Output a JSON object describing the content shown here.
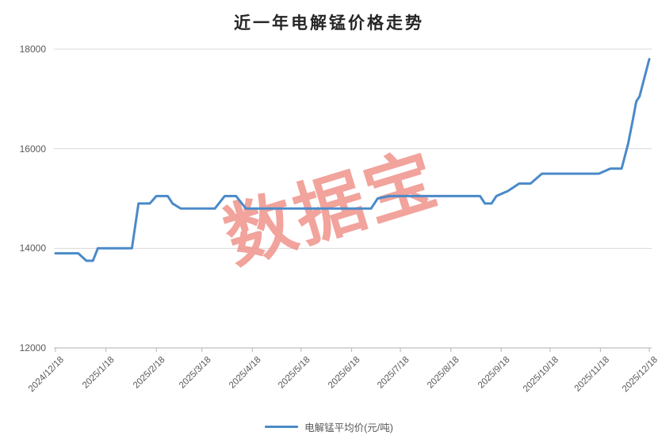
{
  "title": "近一年电解锰价格走势",
  "watermark": "数据宝",
  "legend": {
    "label": "电解锰平均价(元/吨)"
  },
  "colors": {
    "line": "#4a8ac9",
    "grid": "#d9d9d9",
    "axis": "#bfbfbf",
    "tick_text": "#595959",
    "title_text": "#262626",
    "watermark": "#ef938b",
    "background": "#ffffff"
  },
  "chart_data": {
    "type": "line",
    "title": "近一年电解锰价格走势",
    "xlabel": "",
    "ylabel": "",
    "ylim": [
      12000,
      18000
    ],
    "y_ticks": [
      12000,
      14000,
      16000,
      18000
    ],
    "x_range": [
      "2024/12/18",
      "2025/12/18"
    ],
    "x_tick_labels": [
      "2024/12/18",
      "2025/1/18",
      "2025/2/18",
      "2025/3/18",
      "2025/4/18",
      "2025/5/18",
      "2025/6/18",
      "2025/7/18",
      "2025/8/18",
      "2025/9/18",
      "2025/10/18",
      "2025/11/18",
      "2025/12/18"
    ],
    "grid": "horizontal",
    "legend_position": "bottom",
    "series": [
      {
        "name": "电解锰平均价(元/吨)",
        "points": [
          [
            "2024/12/18",
            13900
          ],
          [
            "2024/12/25",
            13900
          ],
          [
            "2025/1/1",
            13900
          ],
          [
            "2025/1/6",
            13750
          ],
          [
            "2025/1/10",
            13750
          ],
          [
            "2025/1/13",
            14000
          ],
          [
            "2025/1/20",
            14000
          ],
          [
            "2025/1/27",
            14000
          ],
          [
            "2025/2/3",
            14000
          ],
          [
            "2025/2/7",
            14900
          ],
          [
            "2025/2/14",
            14900
          ],
          [
            "2025/2/18",
            15050
          ],
          [
            "2025/2/25",
            15050
          ],
          [
            "2025/2/28",
            14900
          ],
          [
            "2025/3/5",
            14800
          ],
          [
            "2025/3/12",
            14800
          ],
          [
            "2025/3/19",
            14800
          ],
          [
            "2025/3/26",
            14800
          ],
          [
            "2025/4/1",
            15050
          ],
          [
            "2025/4/8",
            15050
          ],
          [
            "2025/4/14",
            14800
          ],
          [
            "2025/4/21",
            14800
          ],
          [
            "2025/4/28",
            14800
          ],
          [
            "2025/5/5",
            14800
          ],
          [
            "2025/5/12",
            14800
          ],
          [
            "2025/5/19",
            14800
          ],
          [
            "2025/5/26",
            14800
          ],
          [
            "2025/6/2",
            14800
          ],
          [
            "2025/6/9",
            14800
          ],
          [
            "2025/6/16",
            14800
          ],
          [
            "2025/6/23",
            14800
          ],
          [
            "2025/6/30",
            14800
          ],
          [
            "2025/7/4",
            15000
          ],
          [
            "2025/7/11",
            15050
          ],
          [
            "2025/7/18",
            15050
          ],
          [
            "2025/7/25",
            15050
          ],
          [
            "2025/8/1",
            15050
          ],
          [
            "2025/8/8",
            15050
          ],
          [
            "2025/8/15",
            15050
          ],
          [
            "2025/8/22",
            15050
          ],
          [
            "2025/8/29",
            15050
          ],
          [
            "2025/9/5",
            15050
          ],
          [
            "2025/9/8",
            14900
          ],
          [
            "2025/9/12",
            14900
          ],
          [
            "2025/9/15",
            15050
          ],
          [
            "2025/9/22",
            15150
          ],
          [
            "2025/9/29",
            15300
          ],
          [
            "2025/10/6",
            15300
          ],
          [
            "2025/10/13",
            15500
          ],
          [
            "2025/10/20",
            15500
          ],
          [
            "2025/10/27",
            15500
          ],
          [
            "2025/11/3",
            15500
          ],
          [
            "2025/11/10",
            15500
          ],
          [
            "2025/11/17",
            15500
          ],
          [
            "2025/11/24",
            15600
          ],
          [
            "2025/12/1",
            15600
          ],
          [
            "2025/12/5",
            16100
          ],
          [
            "2025/12/8",
            16600
          ],
          [
            "2025/12/10",
            16950
          ],
          [
            "2025/12/12",
            17050
          ],
          [
            "2025/12/18",
            17800
          ]
        ]
      }
    ]
  }
}
